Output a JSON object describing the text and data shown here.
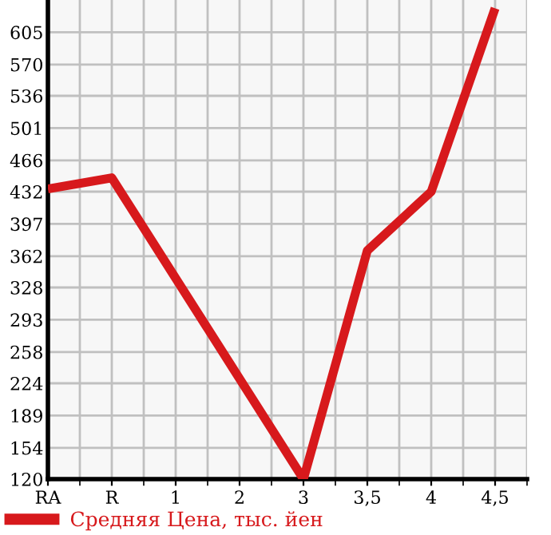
{
  "chart_data": {
    "type": "line",
    "categories": [
      "RA",
      "R",
      "1",
      "2",
      "3",
      "3,5",
      "4",
      "4,5"
    ],
    "series": [
      {
        "name": "Средняя Цена, тыс. йен",
        "color": "#d7191c",
        "values": [
          435,
          447,
          338,
          229,
          120,
          368,
          432,
          631
        ]
      }
    ],
    "ylim": [
      120,
      640
    ],
    "yticks": [
      120,
      154,
      189,
      224,
      258,
      293,
      328,
      362,
      397,
      432,
      466,
      501,
      536,
      570,
      605
    ],
    "grid": true,
    "legend": "bottom left",
    "marker": "none",
    "line_style": "solid"
  }
}
